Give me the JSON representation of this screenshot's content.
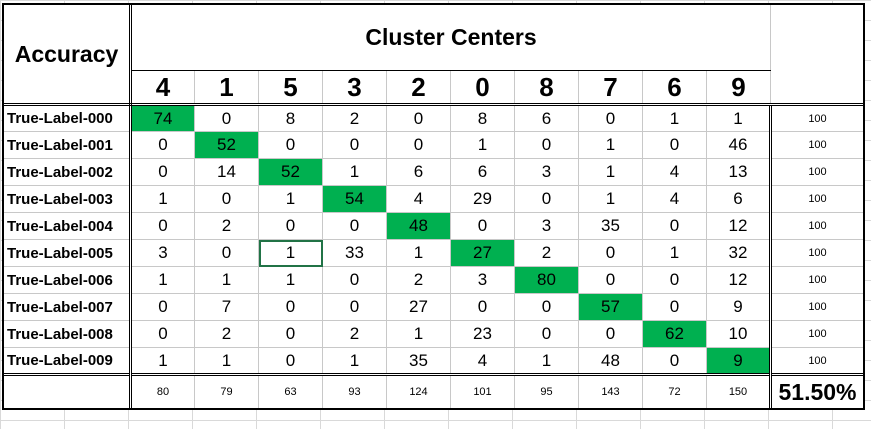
{
  "header": {
    "accuracy_label": "Accuracy",
    "cluster_title": "Cluster Centers"
  },
  "column_headers": [
    "4",
    "1",
    "5",
    "3",
    "2",
    "0",
    "8",
    "7",
    "6",
    "9"
  ],
  "rows": [
    {
      "label": "True-Label-000",
      "values": [
        "74",
        "0",
        "8",
        "2",
        "0",
        "8",
        "6",
        "0",
        "1",
        "1"
      ],
      "total": "100",
      "highlight": 0
    },
    {
      "label": "True-Label-001",
      "values": [
        "0",
        "52",
        "0",
        "0",
        "0",
        "1",
        "0",
        "1",
        "0",
        "46"
      ],
      "total": "100",
      "highlight": 1
    },
    {
      "label": "True-Label-002",
      "values": [
        "0",
        "14",
        "52",
        "1",
        "6",
        "6",
        "3",
        "1",
        "4",
        "13"
      ],
      "total": "100",
      "highlight": 2
    },
    {
      "label": "True-Label-003",
      "values": [
        "1",
        "0",
        "1",
        "54",
        "4",
        "29",
        "0",
        "1",
        "4",
        "6"
      ],
      "total": "100",
      "highlight": 3
    },
    {
      "label": "True-Label-004",
      "values": [
        "0",
        "2",
        "0",
        "0",
        "48",
        "0",
        "3",
        "35",
        "0",
        "12"
      ],
      "total": "100",
      "highlight": 4
    },
    {
      "label": "True-Label-005",
      "values": [
        "3",
        "0",
        "1",
        "33",
        "1",
        "27",
        "2",
        "0",
        "1",
        "32"
      ],
      "total": "100",
      "highlight": 5
    },
    {
      "label": "True-Label-006",
      "values": [
        "1",
        "1",
        "1",
        "0",
        "2",
        "3",
        "80",
        "0",
        "0",
        "12"
      ],
      "total": "100",
      "highlight": 6
    },
    {
      "label": "True-Label-007",
      "values": [
        "0",
        "7",
        "0",
        "0",
        "27",
        "0",
        "0",
        "57",
        "0",
        "9"
      ],
      "total": "100",
      "highlight": 7
    },
    {
      "label": "True-Label-008",
      "values": [
        "0",
        "2",
        "0",
        "2",
        "1",
        "23",
        "0",
        "0",
        "62",
        "10"
      ],
      "total": "100",
      "highlight": 8
    },
    {
      "label": "True-Label-009",
      "values": [
        "1",
        "1",
        "0",
        "1",
        "35",
        "4",
        "1",
        "48",
        "0",
        "9"
      ],
      "total": "100",
      "highlight": 9
    }
  ],
  "column_totals": [
    "80",
    "79",
    "63",
    "93",
    "124",
    "101",
    "95",
    "143",
    "72",
    "150"
  ],
  "accuracy_value": "51.50%",
  "colors": {
    "highlight": "#00b050",
    "selection": "#217346",
    "gridline": "#d9d9d9"
  }
}
